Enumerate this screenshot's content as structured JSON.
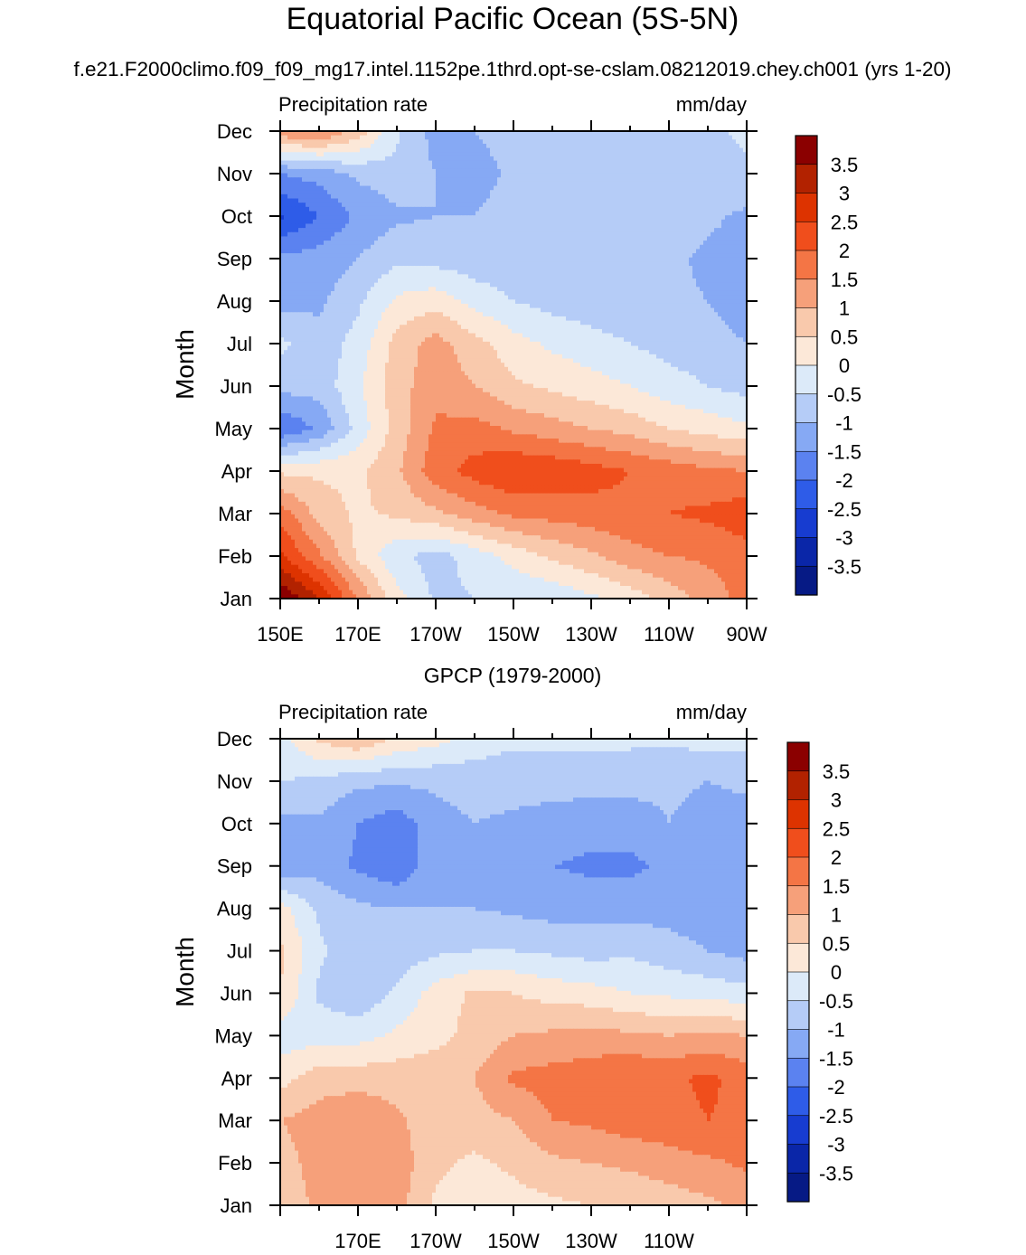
{
  "figure": {
    "title": "Equatorial Pacific Ocean (5S-5N)",
    "subtitle": "f.e21.F2000climo.f09_f09_mg17.intel.1152pe.1thrd.opt-se-cslam.08212019.chey.ch001 (yrs 1-20)"
  },
  "colorbar": {
    "levels": [
      "3.5",
      "3",
      "2.5",
      "2",
      "1.5",
      "1",
      "0.5",
      "0",
      "-0.5",
      "-1",
      "-1.5",
      "-2",
      "-2.5",
      "-3",
      "-3.5"
    ],
    "colors": [
      "#8B0000",
      "#B22200",
      "#DD3300",
      "#F04E1C",
      "#F47545",
      "#F6A07A",
      "#F9C9AC",
      "#FCE8D8",
      "#DCEAF9",
      "#B5CCF7",
      "#86A9F4",
      "#5B82F0",
      "#2E5CE8",
      "#173CD0",
      "#0A26A8",
      "#061A85"
    ]
  },
  "chart_data": [
    {
      "type": "heatmap",
      "title": "",
      "left_label": "Precipitation rate",
      "right_label": "mm/day",
      "xlabel": "",
      "ylabel": "Month",
      "x_ticklabels": [
        "150E",
        "170E",
        "170W",
        "150W",
        "130W",
        "110W",
        "90W"
      ],
      "y_ticklabels": [
        "Jan",
        "Feb",
        "Mar",
        "Apr",
        "May",
        "Jun",
        "Jul",
        "Aug",
        "Sep",
        "Oct",
        "Nov",
        "Dec"
      ],
      "xlim": [
        150,
        270
      ],
      "ylim": [
        0,
        11
      ],
      "x": [
        150,
        160,
        170,
        180,
        190,
        200,
        210,
        220,
        230,
        240,
        250,
        260,
        270
      ],
      "months": [
        "Jan",
        "Feb",
        "Mar",
        "Apr",
        "May",
        "Jun",
        "Jul",
        "Aug",
        "Sep",
        "Oct",
        "Nov",
        "Dec"
      ],
      "z_units": "mm/day",
      "z": [
        [
          4.0,
          3.0,
          1.5,
          0.2,
          -0.6,
          -0.5,
          -0.5,
          -0.4,
          -0.1,
          0.2,
          0.7,
          1.2,
          1.7
        ],
        [
          2.6,
          1.6,
          0.4,
          -0.4,
          -0.7,
          -0.3,
          0.2,
          0.6,
          0.9,
          1.3,
          1.5,
          1.6,
          1.8
        ],
        [
          1.8,
          0.8,
          0.4,
          0.6,
          0.9,
          1.3,
          1.6,
          1.7,
          1.8,
          1.9,
          2.0,
          2.1,
          2.3
        ],
        [
          0.4,
          0.4,
          0.4,
          0.9,
          1.8,
          2.2,
          2.5,
          2.4,
          2.2,
          2.0,
          1.8,
          1.6,
          1.5
        ],
        [
          -2.0,
          -1.4,
          -0.3,
          0.7,
          1.6,
          1.7,
          1.4,
          1.2,
          1.0,
          0.8,
          0.5,
          0.3,
          0.1
        ],
        [
          -0.8,
          -0.8,
          -0.1,
          0.8,
          1.3,
          1.0,
          0.6,
          0.4,
          0.2,
          0.0,
          -0.3,
          -0.5,
          -0.7
        ],
        [
          -0.4,
          -0.8,
          -0.3,
          0.7,
          1.2,
          0.7,
          0.2,
          -0.1,
          -0.3,
          -0.5,
          -0.7,
          -0.8,
          -1.0
        ],
        [
          -1.2,
          -1.1,
          -0.6,
          0.1,
          0.3,
          -0.2,
          -0.5,
          -0.7,
          -0.8,
          -0.9,
          -0.9,
          -1.0,
          -1.3
        ],
        [
          -1.4,
          -1.3,
          -1.0,
          -0.6,
          -0.7,
          -0.8,
          -0.8,
          -0.8,
          -0.8,
          -0.8,
          -0.9,
          -1.1,
          -1.2
        ],
        [
          -2.6,
          -2.0,
          -1.4,
          -1.1,
          -1.0,
          -1.0,
          -0.8,
          -0.8,
          -0.7,
          -0.7,
          -0.7,
          -0.9,
          -1.1
        ],
        [
          -1.5,
          -1.3,
          -0.9,
          -0.7,
          -1.0,
          -1.2,
          -0.9,
          -0.7,
          -0.7,
          -0.7,
          -0.7,
          -0.7,
          -0.6
        ],
        [
          1.4,
          1.6,
          0.8,
          -0.4,
          -1.2,
          -1.0,
          -0.8,
          -0.7,
          -0.6,
          -0.6,
          -0.7,
          -0.6,
          -0.4
        ]
      ]
    },
    {
      "type": "heatmap",
      "title": "GPCP (1979-2000)",
      "left_label": "Precipitation rate",
      "right_label": "mm/day",
      "xlabel": "",
      "ylabel": "Month",
      "x_ticklabels": [
        "170E",
        "170W",
        "150W",
        "130W",
        "110W"
      ],
      "y_ticklabels": [
        "Jan",
        "Feb",
        "Mar",
        "Apr",
        "May",
        "Jun",
        "Jul",
        "Aug",
        "Sep",
        "Oct",
        "Nov",
        "Dec"
      ],
      "xlim": [
        150,
        270
      ],
      "ylim": [
        0,
        11
      ],
      "x": [
        150,
        160,
        170,
        180,
        190,
        200,
        210,
        220,
        230,
        240,
        250,
        260,
        270
      ],
      "months": [
        "Jan",
        "Feb",
        "Mar",
        "Apr",
        "May",
        "Jun",
        "Jul",
        "Aug",
        "Sep",
        "Oct",
        "Nov",
        "Dec"
      ],
      "z_units": "mm/day",
      "z": [
        [
          0.7,
          1.1,
          1.1,
          1.2,
          0.4,
          0.3,
          0.3,
          0.4,
          0.5,
          0.6,
          0.7,
          0.9,
          1.1
        ],
        [
          0.8,
          1.2,
          1.5,
          1.3,
          0.6,
          0.4,
          0.6,
          0.9,
          1.0,
          1.1,
          1.3,
          1.4,
          1.6
        ],
        [
          1.0,
          1.2,
          1.4,
          1.1,
          0.7,
          0.8,
          1.0,
          1.5,
          1.6,
          1.8,
          1.8,
          2.0,
          1.9
        ],
        [
          0.3,
          0.8,
          0.8,
          0.8,
          0.9,
          1.0,
          1.6,
          1.7,
          1.8,
          2.0,
          1.9,
          2.1,
          1.8
        ],
        [
          -0.3,
          -0.2,
          -0.2,
          0.1,
          0.3,
          0.7,
          1.0,
          1.1,
          1.2,
          1.1,
          1.0,
          1.1,
          1.0
        ],
        [
          0.5,
          -0.6,
          -0.9,
          -0.4,
          0.2,
          0.6,
          0.5,
          0.3,
          0.2,
          0.0,
          -0.1,
          -0.2,
          -0.3
        ],
        [
          0.6,
          -0.4,
          -0.8,
          -0.8,
          -0.6,
          -0.5,
          -0.5,
          -0.6,
          -0.7,
          -0.6,
          -0.8,
          -1.0,
          -1.2
        ],
        [
          0.2,
          -0.6,
          -0.9,
          -1.0,
          -1.0,
          -1.0,
          -1.1,
          -1.2,
          -1.2,
          -1.2,
          -1.2,
          -1.3,
          -1.4
        ],
        [
          -1.4,
          -1.2,
          -1.6,
          -1.9,
          -1.2,
          -1.0,
          -1.3,
          -1.5,
          -1.6,
          -1.6,
          -1.4,
          -1.3,
          -1.2
        ],
        [
          -1.1,
          -1.1,
          -1.5,
          -1.8,
          -1.2,
          -1.0,
          -1.1,
          -1.2,
          -1.3,
          -1.3,
          -1.0,
          -1.2,
          -1.2
        ],
        [
          -0.5,
          -0.6,
          -0.9,
          -0.9,
          -0.9,
          -0.8,
          -0.8,
          -0.8,
          -0.8,
          -0.8,
          -0.9,
          -1.0,
          -0.9
        ],
        [
          -0.2,
          0.6,
          1.0,
          0.4,
          0.2,
          -0.2,
          -0.4,
          -0.4,
          -0.4,
          -0.4,
          -0.4,
          -0.3,
          -0.3
        ]
      ]
    }
  ]
}
